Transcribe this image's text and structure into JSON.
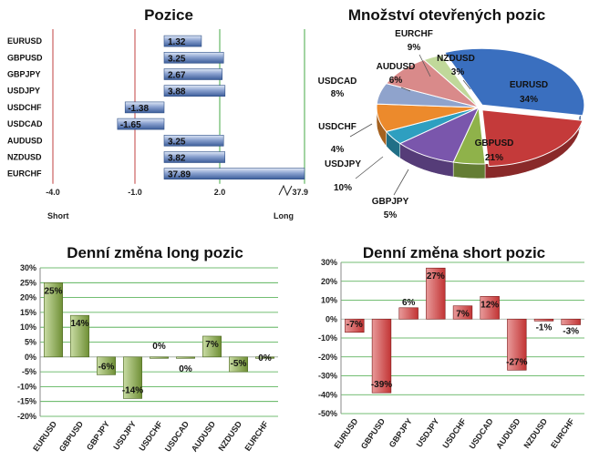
{
  "colors": {
    "pos_bar": "#8aa1cf",
    "long_bar": "#6f8f35",
    "short_bar": "#c23434",
    "gridline": "#44a844",
    "axis_red": "#c24040"
  },
  "chart_data": [
    {
      "id": "pozice",
      "type": "bar",
      "orientation": "horizontal",
      "title": "Pozice",
      "categories": [
        "EURUSD",
        "GBPUSD",
        "GBPJPY",
        "USDJPY",
        "USDCHF",
        "USDCAD",
        "AUDUSD",
        "NZDUSD",
        "EURCHF"
      ],
      "values": [
        1.32,
        3.25,
        2.67,
        3.88,
        -1.38,
        -1.65,
        3.25,
        3.82,
        37.89
      ],
      "value_labels": [
        "1.32",
        "3.25",
        "2.67",
        "3.88",
        "-1.38",
        "-1.65",
        "3.25",
        "3.82",
        "37.89"
      ],
      "x_ticks": [
        "-4.0",
        "-1.0",
        "2.0",
        "37.9"
      ],
      "xlim": [
        -4.0,
        37.9
      ],
      "axis_break": true,
      "short_label": "Short",
      "long_label": "Long"
    },
    {
      "id": "mnozstvi",
      "type": "pie",
      "title": "Množství otevřených pozic",
      "slices": [
        {
          "label": "EURUSD",
          "value": 34,
          "value_label": "34%",
          "color": "#3a6fbf"
        },
        {
          "label": "GBPUSD",
          "value": 21,
          "value_label": "21%",
          "color": "#c43a3a"
        },
        {
          "label": "GBPJPY",
          "value": 5,
          "value_label": "5%",
          "color": "#8fb24a"
        },
        {
          "label": "USDJPY",
          "value": 10,
          "value_label": "10%",
          "color": "#7a56ac"
        },
        {
          "label": "USDCHF",
          "value": 4,
          "value_label": "4%",
          "color": "#2e9fc0"
        },
        {
          "label": "USDCAD",
          "value": 8,
          "value_label": "8%",
          "color": "#ec8a2c"
        },
        {
          "label": "AUDUSD",
          "value": 6,
          "value_label": "6%",
          "color": "#8fa3cc"
        },
        {
          "label": "EURCHF",
          "value": 9,
          "value_label": "9%",
          "color": "#d98a8a"
        },
        {
          "label": "NZDUSD",
          "value": 3,
          "value_label": "3%",
          "color": "#c0d89a"
        }
      ]
    },
    {
      "id": "long",
      "type": "bar",
      "title": "Denní změna long pozic",
      "categories": [
        "EURUSD",
        "GBPUSD",
        "GBPJPY",
        "USDJPY",
        "USDCHF",
        "USDCAD",
        "AUDUSD",
        "NZDUSD",
        "EURCHF"
      ],
      "values": [
        25,
        14,
        -6,
        -14,
        0,
        0,
        7,
        -5,
        0
      ],
      "value_labels": [
        "25%",
        "14%",
        "-6%",
        "-14%",
        "0%",
        "0%",
        "7%",
        "-5%",
        "0%"
      ],
      "y_ticks": [
        "30%",
        "25%",
        "20%",
        "15%",
        "10%",
        "5%",
        "0%",
        "-5%",
        "-10%",
        "-15%",
        "-20%"
      ],
      "ylim": [
        -20,
        30
      ]
    },
    {
      "id": "short",
      "type": "bar",
      "title": "Denní změna short pozic",
      "categories": [
        "EURUSD",
        "GBPUSD",
        "GBPJPY",
        "USDJPY",
        "USDCHF",
        "USDCAD",
        "AUDUSD",
        "NZDUSD",
        "EURCHF"
      ],
      "values": [
        -7,
        -39,
        6,
        27,
        7,
        12,
        -27,
        -1,
        -3
      ],
      "value_labels": [
        "-7%",
        "-39%",
        "6%",
        "27%",
        "7%",
        "12%",
        "-27%",
        "-1%",
        "-3%"
      ],
      "y_ticks": [
        "30%",
        "20%",
        "10%",
        "0%",
        "-10%",
        "-20%",
        "-30%",
        "-40%",
        "-50%"
      ],
      "ylim": [
        -50,
        30
      ]
    }
  ]
}
